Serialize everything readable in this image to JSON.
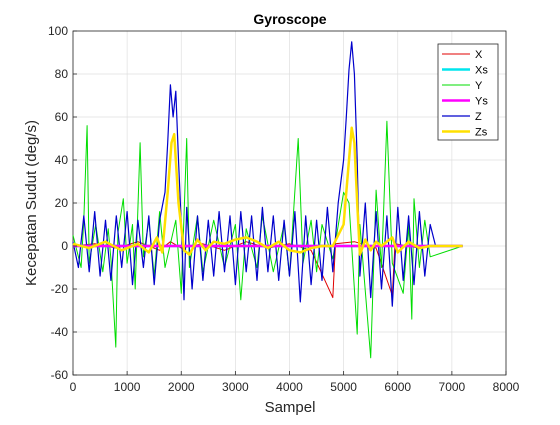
{
  "chart_data": {
    "type": "line",
    "title": "Gyroscope",
    "xlabel": "Sampel",
    "ylabel": "Kecepatan Sudut (deg/s)",
    "xlim": [
      0,
      8000
    ],
    "ylim": [
      -60,
      100
    ],
    "xticks": [
      0,
      1000,
      2000,
      3000,
      4000,
      5000,
      6000,
      7000,
      8000
    ],
    "yticks": [
      -60,
      -40,
      -20,
      0,
      20,
      40,
      60,
      80,
      100
    ],
    "grid": true,
    "legend_position": "top-right",
    "series": [
      {
        "name": "X",
        "color": "#e00000",
        "points": [
          [
            0,
            0
          ],
          [
            400,
            1
          ],
          [
            800,
            -1
          ],
          [
            1200,
            2
          ],
          [
            1600,
            -2
          ],
          [
            1800,
            2
          ],
          [
            2000,
            -1
          ],
          [
            2400,
            1
          ],
          [
            2800,
            -2
          ],
          [
            3200,
            2
          ],
          [
            3600,
            -1
          ],
          [
            4000,
            1
          ],
          [
            4400,
            -2
          ],
          [
            4800,
            -24
          ],
          [
            4850,
            1
          ],
          [
            5200,
            2
          ],
          [
            5600,
            -1
          ],
          [
            5900,
            -23
          ],
          [
            5950,
            1
          ],
          [
            6400,
            -1
          ],
          [
            6600,
            0
          ],
          [
            7200,
            0
          ]
        ]
      },
      {
        "name": "Xs",
        "color": "#00e5ee",
        "points": [
          [
            0,
            0
          ],
          [
            1000,
            0
          ],
          [
            2000,
            0
          ],
          [
            3000,
            0
          ],
          [
            4000,
            0
          ],
          [
            5000,
            0
          ],
          [
            6000,
            0
          ],
          [
            7200,
            0
          ]
        ]
      },
      {
        "name": "Y",
        "color": "#00dd00",
        "points": [
          [
            0,
            5
          ],
          [
            150,
            -10
          ],
          [
            200,
            12
          ],
          [
            260,
            56
          ],
          [
            300,
            -8
          ],
          [
            420,
            10
          ],
          [
            550,
            -12
          ],
          [
            650,
            8
          ],
          [
            700,
            -6
          ],
          [
            790,
            -47
          ],
          [
            830,
            6
          ],
          [
            930,
            22
          ],
          [
            1000,
            -8
          ],
          [
            1100,
            10
          ],
          [
            1150,
            -20
          ],
          [
            1240,
            48
          ],
          [
            1300,
            -5
          ],
          [
            1400,
            12
          ],
          [
            1500,
            -14
          ],
          [
            1600,
            16
          ],
          [
            1700,
            -10
          ],
          [
            1900,
            12
          ],
          [
            2000,
            -22
          ],
          [
            2100,
            50
          ],
          [
            2150,
            -10
          ],
          [
            2300,
            14
          ],
          [
            2400,
            -12
          ],
          [
            2600,
            12
          ],
          [
            2800,
            -10
          ],
          [
            3000,
            10
          ],
          [
            3100,
            -25
          ],
          [
            3200,
            8
          ],
          [
            3400,
            -10
          ],
          [
            3500,
            14
          ],
          [
            3700,
            -12
          ],
          [
            3900,
            10
          ],
          [
            4000,
            -14
          ],
          [
            4160,
            50
          ],
          [
            4250,
            -8
          ],
          [
            4400,
            12
          ],
          [
            4500,
            -12
          ],
          [
            4600,
            10
          ],
          [
            4800,
            -6
          ],
          [
            5000,
            25
          ],
          [
            5100,
            20
          ],
          [
            5250,
            -41
          ],
          [
            5300,
            10
          ],
          [
            5500,
            -52
          ],
          [
            5600,
            26
          ],
          [
            5700,
            -10
          ],
          [
            5800,
            58
          ],
          [
            5900,
            -8
          ],
          [
            6100,
            -22
          ],
          [
            6200,
            10
          ],
          [
            6260,
            -34
          ],
          [
            6300,
            22
          ],
          [
            6400,
            -10
          ],
          [
            6500,
            12
          ],
          [
            6600,
            -5
          ],
          [
            7200,
            0
          ]
        ]
      },
      {
        "name": "Ys",
        "color": "#ff00ff",
        "points": [
          [
            0,
            0
          ],
          [
            1000,
            0
          ],
          [
            2000,
            0
          ],
          [
            3000,
            0
          ],
          [
            4000,
            0
          ],
          [
            5000,
            0
          ],
          [
            6000,
            0
          ],
          [
            7200,
            0
          ]
        ]
      },
      {
        "name": "Z",
        "color": "#0000cc",
        "points": [
          [
            0,
            2
          ],
          [
            100,
            -10
          ],
          [
            200,
            14
          ],
          [
            300,
            -12
          ],
          [
            400,
            16
          ],
          [
            500,
            -14
          ],
          [
            600,
            12
          ],
          [
            700,
            -16
          ],
          [
            800,
            14
          ],
          [
            900,
            -10
          ],
          [
            1000,
            16
          ],
          [
            1100,
            -18
          ],
          [
            1200,
            12
          ],
          [
            1300,
            -10
          ],
          [
            1400,
            14
          ],
          [
            1500,
            -18
          ],
          [
            1600,
            12
          ],
          [
            1700,
            25
          ],
          [
            1750,
            48
          ],
          [
            1800,
            75
          ],
          [
            1850,
            60
          ],
          [
            1900,
            72
          ],
          [
            1950,
            40
          ],
          [
            2000,
            10
          ],
          [
            2050,
            -25
          ],
          [
            2100,
            18
          ],
          [
            2200,
            -20
          ],
          [
            2300,
            14
          ],
          [
            2400,
            -16
          ],
          [
            2500,
            12
          ],
          [
            2600,
            -14
          ],
          [
            2700,
            16
          ],
          [
            2800,
            -12
          ],
          [
            2900,
            14
          ],
          [
            3000,
            -18
          ],
          [
            3100,
            16
          ],
          [
            3200,
            -12
          ],
          [
            3300,
            14
          ],
          [
            3400,
            -16
          ],
          [
            3500,
            18
          ],
          [
            3600,
            -12
          ],
          [
            3700,
            14
          ],
          [
            3800,
            -16
          ],
          [
            3900,
            12
          ],
          [
            4000,
            -14
          ],
          [
            4100,
            16
          ],
          [
            4200,
            -26
          ],
          [
            4300,
            14
          ],
          [
            4400,
            -18
          ],
          [
            4500,
            12
          ],
          [
            4600,
            -16
          ],
          [
            4700,
            18
          ],
          [
            4800,
            -12
          ],
          [
            4900,
            20
          ],
          [
            5000,
            40
          ],
          [
            5050,
            60
          ],
          [
            5100,
            82
          ],
          [
            5150,
            95
          ],
          [
            5200,
            80
          ],
          [
            5250,
            40
          ],
          [
            5300,
            -14
          ],
          [
            5400,
            20
          ],
          [
            5500,
            -24
          ],
          [
            5600,
            16
          ],
          [
            5700,
            -20
          ],
          [
            5800,
            14
          ],
          [
            5900,
            -28
          ],
          [
            6000,
            18
          ],
          [
            6100,
            -16
          ],
          [
            6200,
            14
          ],
          [
            6300,
            -18
          ],
          [
            6400,
            16
          ],
          [
            6500,
            -14
          ],
          [
            6600,
            10
          ],
          [
            6700,
            0
          ],
          [
            7200,
            0
          ]
        ]
      },
      {
        "name": "Zs",
        "color": "#ffe000",
        "points": [
          [
            0,
            1
          ],
          [
            300,
            -1
          ],
          [
            600,
            2
          ],
          [
            900,
            -2
          ],
          [
            1200,
            1
          ],
          [
            1400,
            -3
          ],
          [
            1550,
            4
          ],
          [
            1650,
            -3
          ],
          [
            1750,
            25
          ],
          [
            1820,
            48
          ],
          [
            1870,
            52
          ],
          [
            1950,
            20
          ],
          [
            2050,
            -2
          ],
          [
            2150,
            -4
          ],
          [
            2300,
            3
          ],
          [
            2450,
            -2
          ],
          [
            2600,
            2
          ],
          [
            2800,
            1
          ],
          [
            3000,
            3
          ],
          [
            3200,
            4
          ],
          [
            3400,
            2
          ],
          [
            3600,
            -1
          ],
          [
            3800,
            2
          ],
          [
            4000,
            -2
          ],
          [
            4200,
            -3
          ],
          [
            4400,
            -1
          ],
          [
            4600,
            0
          ],
          [
            4800,
            0
          ],
          [
            5000,
            10
          ],
          [
            5100,
            40
          ],
          [
            5150,
            55
          ],
          [
            5200,
            48
          ],
          [
            5250,
            20
          ],
          [
            5300,
            -4
          ],
          [
            5400,
            3
          ],
          [
            5500,
            -2
          ],
          [
            5600,
            2
          ],
          [
            5700,
            0
          ],
          [
            5900,
            4
          ],
          [
            6000,
            -3
          ],
          [
            6200,
            2
          ],
          [
            6400,
            -1
          ],
          [
            6600,
            0
          ],
          [
            7200,
            0
          ]
        ]
      }
    ]
  }
}
